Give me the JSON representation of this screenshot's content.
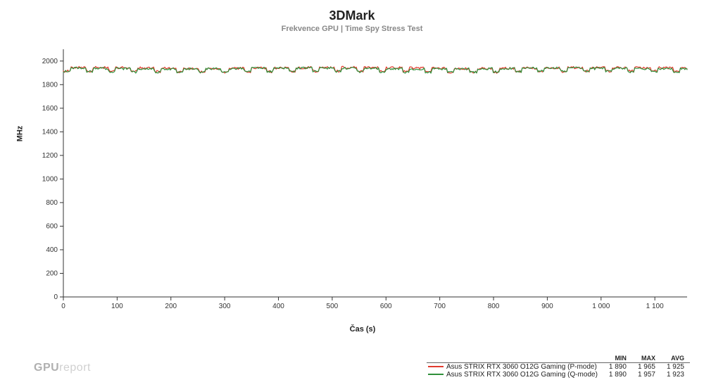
{
  "title": "3DMark",
  "subtitle": "Frekvence GPU | Time Spy Stress Test",
  "chart": {
    "type": "line",
    "x_label": "Čas (s)",
    "y_label": "MHz",
    "xlim": [
      0,
      1160
    ],
    "ylim": [
      0,
      2100
    ],
    "x_ticks": [
      0,
      100,
      200,
      300,
      400,
      500,
      600,
      700,
      800,
      900,
      1000,
      1100
    ],
    "x_tick_labels": [
      "0",
      "100",
      "200",
      "300",
      "400",
      "500",
      "600",
      "700",
      "800",
      "900",
      "1 000",
      "1 100"
    ],
    "y_ticks": [
      0,
      200,
      400,
      600,
      800,
      1000,
      1200,
      1400,
      1600,
      1800,
      2000
    ],
    "y_tick_labels": [
      "0",
      "200",
      "400",
      "600",
      "800",
      "1000",
      "1200",
      "1400",
      "1600",
      "1800",
      "2000"
    ],
    "background_color": "#ffffff",
    "axis_color": "#333333",
    "tick_color": "#333333",
    "tick_length": 5,
    "tick_font_size": 10,
    "line_width": 1.2,
    "title_fontsize": 18,
    "subtitle_fontsize": 11,
    "subtitle_color": "#888888",
    "axis_label_fontsize": 11,
    "series": [
      {
        "name": "Asus STRIX RTX 3060 O12G Gaming  (P-mode)",
        "color": "#e23b2e",
        "base": 1925,
        "low": 1900,
        "high": 1955,
        "noise_amp": 10,
        "step_period": 42,
        "step_duty": 0.3,
        "noise_seed": 1
      },
      {
        "name": "Asus STRIX RTX 3060 O12G Gaming (Q-mode)",
        "color": "#2f8f3a",
        "base": 1923,
        "low": 1898,
        "high": 1948,
        "noise_amp": 9,
        "step_period": 42,
        "step_duty": 0.3,
        "noise_seed": 2
      }
    ]
  },
  "legend": {
    "headers": [
      "MIN",
      "MAX",
      "AVG"
    ],
    "rows": [
      {
        "series_index": 0,
        "min": "1 890",
        "max": "1 965",
        "avg": "1 925"
      },
      {
        "series_index": 1,
        "min": "1 890",
        "max": "1 957",
        "avg": "1 923"
      }
    ]
  },
  "footer_logo": {
    "part1": "GPU",
    "part2": "report"
  }
}
